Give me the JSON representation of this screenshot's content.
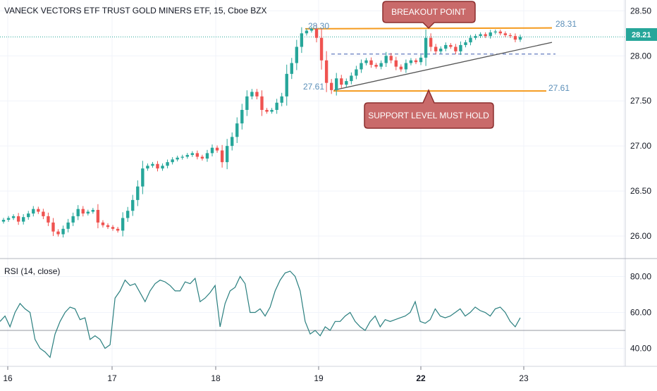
{
  "header": {
    "title": "VANECK VECTORS ETF TRUST GOLD MINERS ETF, 15, Cboe BZX"
  },
  "price_axis": {
    "ticks": [
      "28.50",
      "28.00",
      "27.50",
      "27.00",
      "26.50",
      "26.00"
    ],
    "current_price": "28.21"
  },
  "rsi_axis": {
    "ticks": [
      "80.00",
      "60.00",
      "40.00"
    ]
  },
  "time_axis": {
    "ticks": [
      "16",
      "17",
      "18",
      "19",
      "22",
      "23"
    ]
  },
  "annotations": {
    "breakout_label": "BREAKOUT POINT",
    "support_label": "SUPPORT LEVEL MUST HOLD",
    "resistance_left": "28.30",
    "resistance_right": "28.31",
    "support_left": "27.61",
    "support_right": "27.61"
  },
  "rsi": {
    "label": "RSI (14, close)"
  },
  "colors": {
    "up": "#26a69a",
    "down": "#ef5350",
    "level": "#f59b1f",
    "callout_fill": "#c96a6a",
    "callout_border": "#8b2e2e",
    "rsi_line": "#2a7f7f",
    "price_tag": "#26a69a"
  },
  "chart_data": [
    {
      "type": "candlestick",
      "title": "VANECK VECTORS ETF TRUST GOLD MINERS ETF, 15, Cboe BZX",
      "x_tick_labels": [
        "16",
        "17",
        "18",
        "19",
        "22",
        "23"
      ],
      "y_ticks": [
        26.0,
        26.5,
        27.0,
        27.5,
        28.0,
        28.5
      ],
      "ylim": [
        25.75,
        28.62
      ],
      "last_price": 28.21,
      "levels": [
        {
          "name": "resistance",
          "start_price": 28.3,
          "end_price": 28.31
        },
        {
          "name": "support",
          "start_price": 27.61,
          "end_price": 27.61
        }
      ],
      "close": [
        26.18,
        26.2,
        26.22,
        26.16,
        26.21,
        26.25,
        26.3,
        26.27,
        26.22,
        26.15,
        26.05,
        26.02,
        26.08,
        26.15,
        26.22,
        26.3,
        26.25,
        26.27,
        26.29,
        26.15,
        26.12,
        26.1,
        26.08,
        26.06,
        26.2,
        26.28,
        26.4,
        26.55,
        26.75,
        26.78,
        26.8,
        26.75,
        26.78,
        26.82,
        26.85,
        26.87,
        26.88,
        26.9,
        26.92,
        26.88,
        26.86,
        26.92,
        26.98,
        26.95,
        26.82,
        27.0,
        27.1,
        27.25,
        27.4,
        27.55,
        27.6,
        27.55,
        27.4,
        27.38,
        27.4,
        27.48,
        27.55,
        27.8,
        27.92,
        28.1,
        28.25,
        28.28,
        28.3,
        28.2,
        27.95,
        27.7,
        27.62,
        27.75,
        27.68,
        27.72,
        27.78,
        27.85,
        27.92,
        27.95,
        27.9,
        27.88,
        27.92,
        28.0,
        27.95,
        27.88,
        27.85,
        27.92,
        27.95,
        27.93,
        27.98,
        28.2,
        28.1,
        28.05,
        28.08,
        28.12,
        28.1,
        28.05,
        28.12,
        28.15,
        28.2,
        28.22,
        28.24,
        28.22,
        28.26,
        28.27,
        28.25,
        28.23,
        28.22,
        28.18,
        28.21
      ]
    },
    {
      "type": "line",
      "title": "RSI (14, close)",
      "y_ticks": [
        40,
        60,
        80
      ],
      "ylim": [
        30,
        90
      ],
      "reference_level": 50,
      "values": [
        55,
        58,
        52,
        60,
        65,
        62,
        60,
        45,
        40,
        38,
        35,
        48,
        55,
        60,
        63,
        62,
        56,
        57,
        45,
        47,
        45,
        40,
        42,
        68,
        72,
        78,
        75,
        76,
        71,
        66,
        72,
        76,
        78,
        77,
        75,
        72,
        72,
        77,
        76,
        79,
        66,
        68,
        71,
        75,
        52,
        65,
        72,
        74,
        80,
        76,
        60,
        60,
        62,
        58,
        63,
        72,
        78,
        82,
        83,
        80,
        72,
        55,
        48,
        50,
        47,
        52,
        50,
        55,
        55,
        58,
        60,
        55,
        52,
        50,
        55,
        58,
        52,
        56,
        55,
        56,
        57,
        58,
        60,
        66,
        55,
        54,
        56,
        62,
        58,
        57,
        58,
        60,
        62,
        58,
        60,
        63,
        61,
        60,
        58,
        62,
        63,
        60,
        55,
        52,
        57
      ]
    }
  ]
}
